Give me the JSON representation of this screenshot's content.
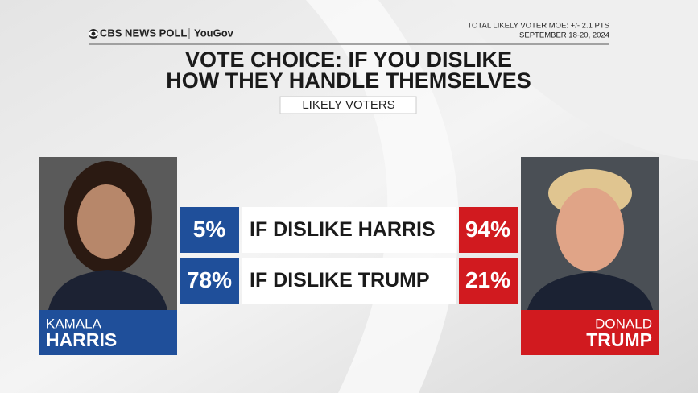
{
  "header": {
    "logo": "CBS NEWS POLL",
    "partner": "YouGov",
    "moe": "TOTAL LIKELY VOTER MOE: +/- 2.1 PTS",
    "date": "SEPTEMBER 18-20, 2024"
  },
  "title": [
    "VOTE CHOICE: IF YOU DISLIKE",
    "HOW THEY HANDLE THEMSELVES"
  ],
  "subtitle": "LIKELY VOTERS",
  "candidates": [
    {
      "first": "KAMALA",
      "last": "HARRIS"
    },
    {
      "first": "DONALD",
      "last": "TRUMP"
    }
  ],
  "table": {
    "rows": [
      {
        "harris": "5%",
        "label": "IF DISLIKE HARRIS",
        "trump": "94%"
      },
      {
        "harris": "78%",
        "label": "IF DISLIKE TRUMP",
        "trump": "21%"
      }
    ]
  }
}
